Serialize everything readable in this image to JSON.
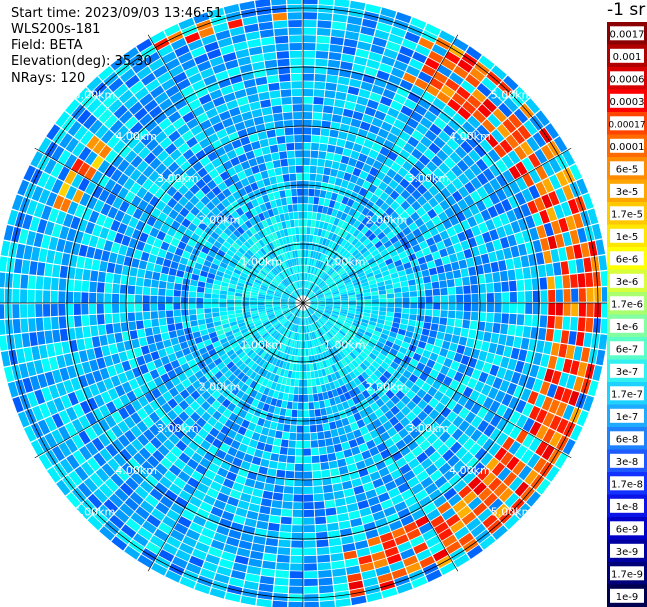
{
  "header": {
    "start_time": "Start time: 2023/09/03 13:46:51",
    "instrument": "WLS200s-181",
    "field": "Field: BETA",
    "elevation": "Elevation(deg): 35.30",
    "nrays": "NRays: 120"
  },
  "chart_data": {
    "type": "heatmap",
    "projection": "polar-ppi",
    "title": "",
    "field": "BETA",
    "elevation_deg": 35.3,
    "n_rays": 120,
    "max_range_km": 5.2,
    "range_rings_km": [
      1,
      2,
      3,
      4,
      5
    ],
    "range_labels": [
      "1.00km",
      "2.00km",
      "3.00km",
      "4.00km",
      "5.00km"
    ],
    "spokes_deg": [
      0,
      30,
      60,
      90,
      120,
      150,
      180,
      210,
      240,
      270,
      300,
      330
    ],
    "features": [
      {
        "range_km": [
          0.0,
          1.5
        ],
        "level": 0.35
      },
      {
        "azimuth_deg": [
          25,
          170
        ],
        "range_km": [
          4.2,
          5.0
        ],
        "level": 0.82
      },
      {
        "azimuth_deg": [
          330,
          360
        ],
        "range_km": [
          4.8,
          5.1
        ],
        "level": 0.8
      },
      {
        "azimuth_deg": [
          290,
          310
        ],
        "range_km": [
          4.2,
          4.6
        ],
        "level": 0.78
      }
    ],
    "colorbar": {
      "unit": "-1 sr",
      "labels": [
        "0.0017",
        "0.001",
        "0.0006",
        "0.0003",
        "0.00017",
        "0.0001",
        "6e-5",
        "3e-5",
        "1.7e-5",
        "1e-5",
        "6e-6",
        "3e-6",
        "1.7e-6",
        "1e-6",
        "6e-7",
        "3e-7",
        "1.7e-7",
        "1e-7",
        "6e-8",
        "3e-8",
        "1.7e-8",
        "1e-8",
        "6e-9",
        "3e-9",
        "1.7e-9",
        "1e-9"
      ],
      "colors": [
        "#8b0000",
        "#b00000",
        "#d80000",
        "#ff0000",
        "#ff4500",
        "#ff6a00",
        "#ff8c00",
        "#ffa500",
        "#ffc800",
        "#ffe600",
        "#ffff00",
        "#d7ff3c",
        "#aaff6e",
        "#82ffa0",
        "#5affc8",
        "#32f0f0",
        "#1ed2ff",
        "#1eaaff",
        "#1e82ff",
        "#1e5aff",
        "#1432ff",
        "#0a14e6",
        "#0000c8",
        "#0000a0",
        "#000078",
        "#000050"
      ]
    }
  }
}
